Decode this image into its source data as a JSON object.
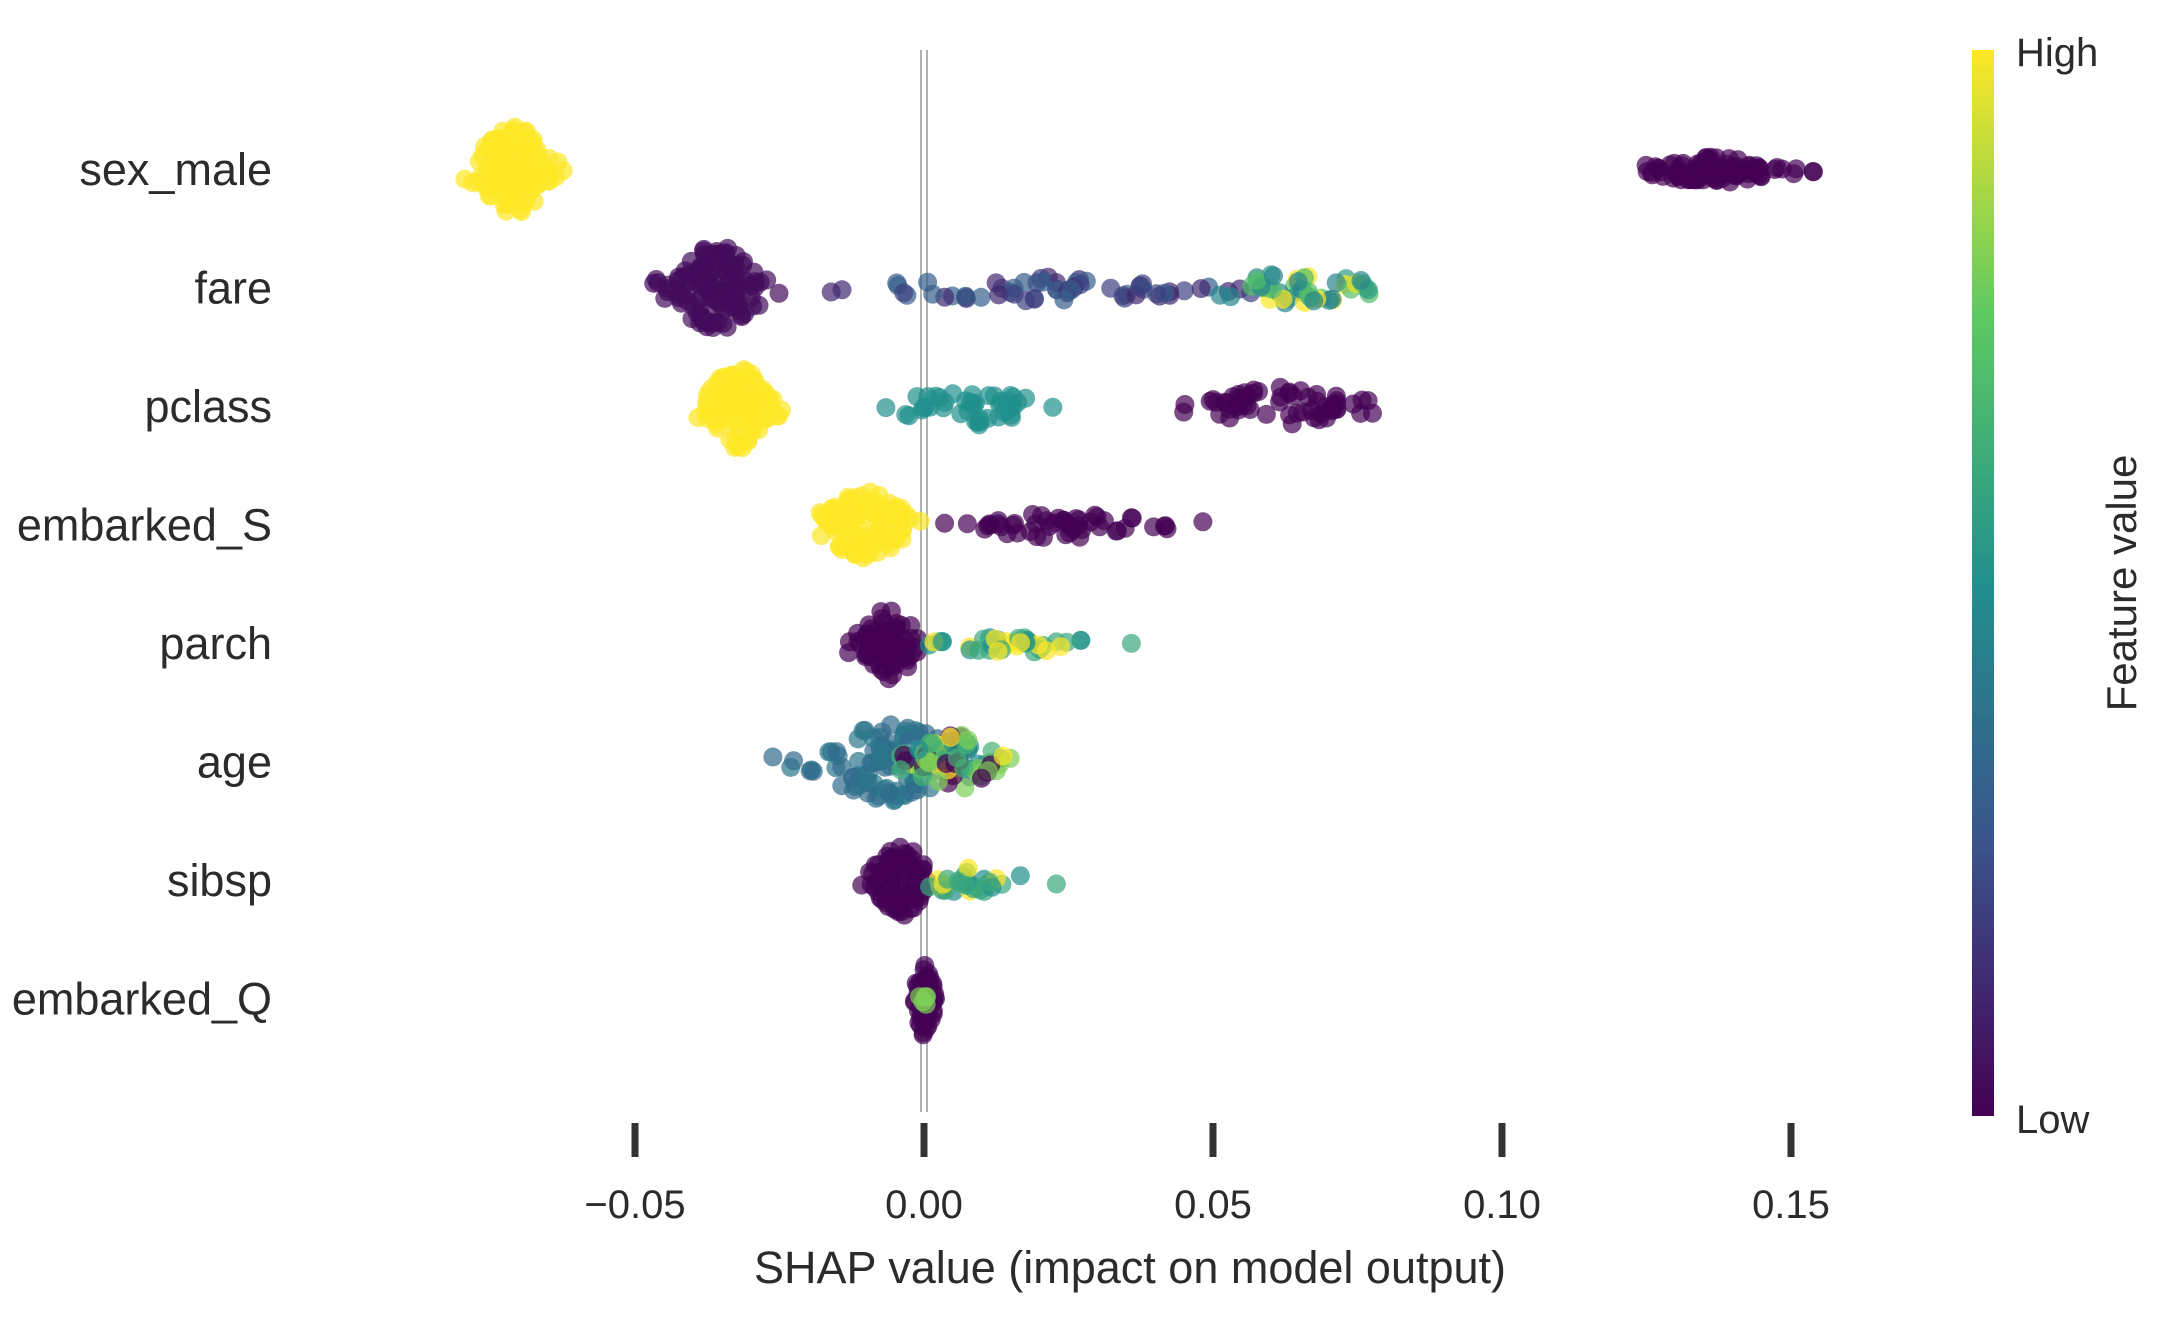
{
  "chart_data": {
    "type": "scatter",
    "subtype": "shap-beeswarm-summary",
    "xlabel": "SHAP value (impact on model output)",
    "xlim": [
      -0.101,
      0.175
    ],
    "x_ticks": [
      -0.05,
      0.0,
      0.05,
      0.1,
      0.15
    ],
    "x_tick_labels": [
      "−0.05",
      "0.00",
      "0.05",
      "0.10",
      "0.15"
    ],
    "grid": false,
    "zero_line": true,
    "colorbar": {
      "title": "Feature value",
      "high_label": "High",
      "low_label": "Low",
      "colormap": [
        "#440154",
        "#3b528b",
        "#21908d",
        "#5dc963",
        "#fde725"
      ]
    },
    "features": [
      {
        "name": "sex_male",
        "clusters": [
          {
            "center": -0.071,
            "spread": 0.008,
            "height": 0.85,
            "count": 150,
            "colors": [
              1.0
            ]
          },
          {
            "center": 0.137,
            "spread": 0.015,
            "height": 0.25,
            "count": 90,
            "colors": [
              0.0
            ]
          }
        ]
      },
      {
        "name": "fare",
        "clusters": [
          {
            "center": -0.036,
            "spread": 0.009,
            "height": 0.85,
            "count": 130,
            "colors": [
              0.03
            ]
          },
          {
            "center": 0.02,
            "spread": 0.038,
            "height": 0.25,
            "count": 60,
            "colors": [
              0.12,
              0.2,
              0.3
            ]
          },
          {
            "center": 0.064,
            "spread": 0.018,
            "height": 0.3,
            "count": 45,
            "colors": [
              0.45,
              0.55,
              0.7,
              1.0
            ]
          }
        ]
      },
      {
        "name": "pclass",
        "clusters": [
          {
            "center": -0.032,
            "spread": 0.007,
            "height": 0.8,
            "count": 110,
            "colors": [
              1.0
            ]
          },
          {
            "center": 0.008,
            "spread": 0.016,
            "height": 0.35,
            "count": 45,
            "colors": [
              0.5
            ]
          },
          {
            "center": 0.062,
            "spread": 0.015,
            "height": 0.4,
            "count": 60,
            "colors": [
              0.0
            ]
          }
        ]
      },
      {
        "name": "embarked_S",
        "clusters": [
          {
            "center": -0.01,
            "spread": 0.009,
            "height": 0.7,
            "count": 100,
            "colors": [
              1.0
            ]
          },
          {
            "center": 0.024,
            "spread": 0.022,
            "height": 0.25,
            "count": 50,
            "colors": [
              0.0
            ]
          }
        ]
      },
      {
        "name": "parch",
        "clusters": [
          {
            "center": -0.006,
            "spread": 0.006,
            "height": 0.7,
            "count": 80,
            "colors": [
              0.0
            ]
          },
          {
            "center": 0.016,
            "spread": 0.016,
            "height": 0.18,
            "count": 40,
            "colors": [
              0.5,
              0.6,
              1.0
            ]
          }
        ]
      },
      {
        "name": "age",
        "clusters": [
          {
            "center": -0.006,
            "spread": 0.016,
            "height": 0.75,
            "count": 100,
            "colors": [
              0.35,
              0.4
            ]
          },
          {
            "center": 0.005,
            "spread": 0.009,
            "height": 0.55,
            "count": 70,
            "colors": [
              0.0,
              0.5,
              0.65,
              0.8,
              1.0
            ]
          }
        ]
      },
      {
        "name": "sibsp",
        "clusters": [
          {
            "center": -0.004,
            "spread": 0.006,
            "height": 0.7,
            "count": 80,
            "colors": [
              0.0
            ]
          },
          {
            "center": 0.008,
            "spread": 0.012,
            "height": 0.25,
            "count": 30,
            "colors": [
              0.5,
              0.6,
              1.0
            ]
          }
        ]
      },
      {
        "name": "embarked_Q",
        "clusters": [
          {
            "center": 0.0,
            "spread": 0.002,
            "height": 0.7,
            "count": 50,
            "colors": [
              0.0
            ]
          },
          {
            "center": 0.0,
            "spread": 0.001,
            "height": 0.15,
            "count": 5,
            "colors": [
              0.8
            ]
          }
        ]
      }
    ]
  }
}
